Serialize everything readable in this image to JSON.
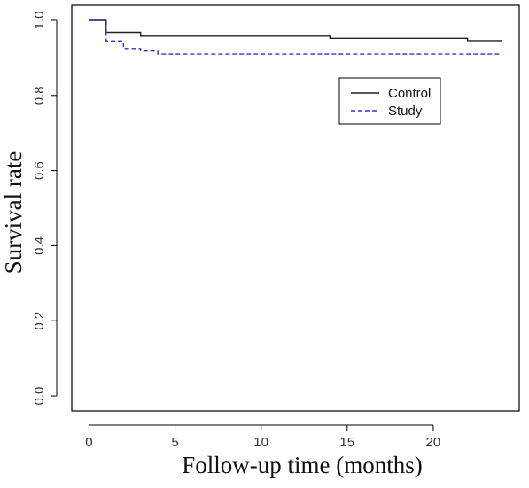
{
  "chart_data": {
    "type": "line",
    "step": true,
    "xlabel": "Follow-up time (months)",
    "ylabel": "Survival rate",
    "xlim": [
      -1,
      25
    ],
    "ylim": [
      -0.04,
      1.04
    ],
    "xticks": [
      0,
      5,
      10,
      15,
      20
    ],
    "xtick_labels": [
      "0",
      "5",
      "10",
      "15",
      "20"
    ],
    "yticks": [
      0.0,
      0.2,
      0.4,
      0.6,
      0.8,
      1.0
    ],
    "ytick_labels": [
      "0.0",
      "0.2",
      "0.4",
      "0.6",
      "0.8",
      "1.0"
    ],
    "grid": false,
    "legend_position": "top-right",
    "series": [
      {
        "name": "Control",
        "color": "#222222",
        "dash": "solid",
        "x": [
          0,
          1,
          3,
          14,
          22,
          24
        ],
        "y": [
          1.0,
          0.968,
          0.958,
          0.952,
          0.946,
          0.946
        ]
      },
      {
        "name": "Study",
        "color": "#3333cc",
        "dash": "dashed",
        "x": [
          0,
          1,
          2,
          3,
          4,
          24
        ],
        "y": [
          1.0,
          0.945,
          0.925,
          0.918,
          0.91,
          0.91
        ]
      }
    ]
  }
}
